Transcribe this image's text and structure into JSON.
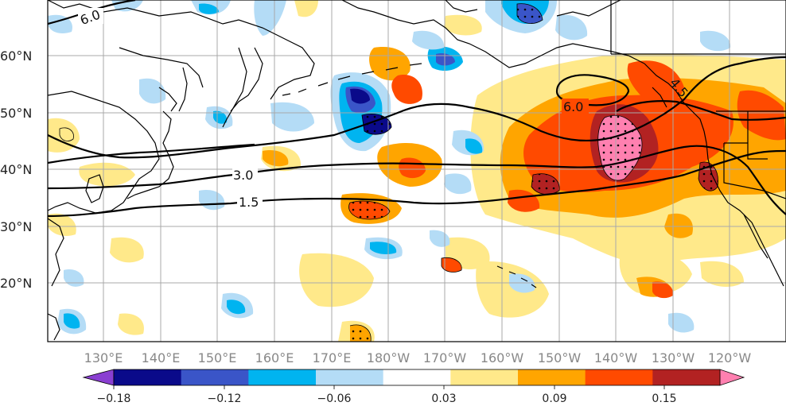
{
  "map": {
    "lat_labels": [
      "60°N",
      "50°N",
      "40°N",
      "30°N",
      "20°N"
    ],
    "lon_labels": [
      "130°E",
      "140°E",
      "150°E",
      "160°E",
      "170°E",
      "180°W",
      "170°W",
      "160°W",
      "150°W",
      "140°W",
      "130°W",
      "120°W"
    ],
    "contour_labels": [
      "6.0",
      "6.0",
      "3.0",
      "1.5",
      "4.5"
    ],
    "colors": {
      "ocean_bg": "#ffffff",
      "grid": "#a9a9a9",
      "coast": "#000000",
      "contour": "#000000"
    }
  },
  "colorbar": {
    "tick_labels": [
      "−0.18",
      "−0.12",
      "−0.06",
      "0.03",
      "0.09",
      "0.15"
    ],
    "colors": [
      "#8a3fd1",
      "#0a0a8a",
      "#3a55c8",
      "#00b4f0",
      "#b4dcf6",
      "#ffffff",
      "#ffe98a",
      "#ffa500",
      "#ff4a00",
      "#b22222",
      "#ff80b0"
    ]
  }
}
